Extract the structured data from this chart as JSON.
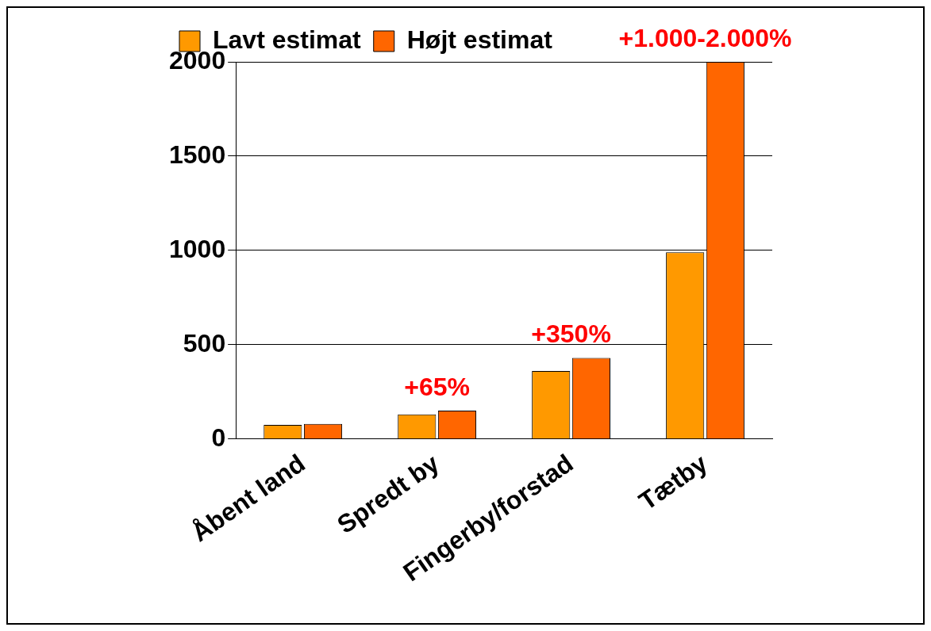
{
  "chart_data": {
    "type": "bar",
    "categories": [
      "Åbent land",
      "Spredt by",
      "Fingerby/forstad",
      "Tætby"
    ],
    "series": [
      {
        "name": "Lavt estimat",
        "color": "#ff9900",
        "values": [
          75,
          130,
          360,
          990
        ]
      },
      {
        "name": "Højt estimat",
        "color": "#ff6600",
        "values": [
          80,
          150,
          430,
          2000
        ]
      }
    ],
    "ylim": [
      0,
      2000
    ],
    "yticks": [
      0,
      500,
      1000,
      1500,
      2000
    ],
    "grid": "y",
    "legend": "top left",
    "annotations": [
      {
        "text": "+65%",
        "x": "Spredt by",
        "y": 150
      },
      {
        "text": "+350%",
        "x": "Fingerby/forstad",
        "y": 430
      },
      {
        "text": "+1.000-2.000%",
        "x": "Tætby",
        "y": 2000
      }
    ]
  }
}
